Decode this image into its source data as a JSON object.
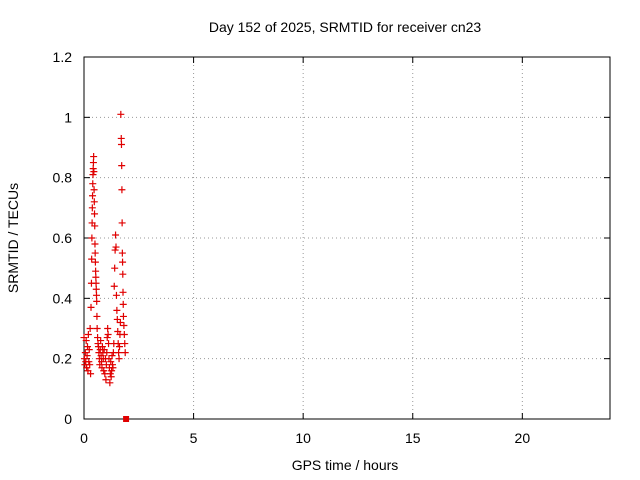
{
  "chart_data": {
    "type": "scatter",
    "title": "Day 152 of 2025, SRMTID for receiver cn23",
    "xlabel": "GPS time / hours",
    "ylabel": "SRMTID / TECUs",
    "xlim": [
      0,
      24
    ],
    "ylim": [
      0,
      1.2
    ],
    "xticks": [
      0,
      5,
      10,
      15,
      20
    ],
    "yticks": [
      0,
      0.2,
      0.4,
      0.6,
      0.8,
      1.0,
      1.2
    ],
    "xtick_labels": [
      "0",
      "5",
      "10",
      "15",
      "20"
    ],
    "ytick_labels": [
      "0",
      "0.2",
      "0.4",
      "0.6",
      "0.8",
      "1",
      "1.2"
    ],
    "grid": true,
    "marker_color": "#e00000",
    "series": [
      {
        "marker": "plus",
        "points": [
          [
            0.0,
            0.27
          ],
          [
            0.02,
            0.2
          ],
          [
            0.04,
            0.18
          ],
          [
            0.06,
            0.22
          ],
          [
            0.08,
            0.19
          ],
          [
            0.1,
            0.26
          ],
          [
            0.12,
            0.17
          ],
          [
            0.14,
            0.21
          ],
          [
            0.16,
            0.24
          ],
          [
            0.18,
            0.16
          ],
          [
            0.2,
            0.28
          ],
          [
            0.22,
            0.19
          ],
          [
            0.24,
            0.23
          ],
          [
            0.26,
            0.18
          ],
          [
            0.28,
            0.3
          ],
          [
            0.3,
            0.15
          ],
          [
            0.32,
            0.37
          ],
          [
            0.34,
            0.45
          ],
          [
            0.35,
            0.53
          ],
          [
            0.36,
            0.6
          ],
          [
            0.37,
            0.65
          ],
          [
            0.38,
            0.7
          ],
          [
            0.39,
            0.74
          ],
          [
            0.4,
            0.78
          ],
          [
            0.41,
            0.81
          ],
          [
            0.42,
            0.83
          ],
          [
            0.43,
            0.85
          ],
          [
            0.44,
            0.87
          ],
          [
            0.45,
            0.82
          ],
          [
            0.46,
            0.76
          ],
          [
            0.47,
            0.72
          ],
          [
            0.48,
            0.68
          ],
          [
            0.49,
            0.64
          ],
          [
            0.5,
            0.58
          ],
          [
            0.51,
            0.55
          ],
          [
            0.52,
            0.52
          ],
          [
            0.53,
            0.49
          ],
          [
            0.54,
            0.47
          ],
          [
            0.55,
            0.45
          ],
          [
            0.56,
            0.43
          ],
          [
            0.57,
            0.41
          ],
          [
            0.58,
            0.39
          ],
          [
            0.59,
            0.34
          ],
          [
            0.6,
            0.3
          ],
          [
            0.62,
            0.27
          ],
          [
            0.64,
            0.25
          ],
          [
            0.66,
            0.24
          ],
          [
            0.68,
            0.22
          ],
          [
            0.7,
            0.2
          ],
          [
            0.72,
            0.18
          ],
          [
            0.74,
            0.23
          ],
          [
            0.76,
            0.26
          ],
          [
            0.78,
            0.21
          ],
          [
            0.8,
            0.19
          ],
          [
            0.82,
            0.17
          ],
          [
            0.84,
            0.24
          ],
          [
            0.86,
            0.22
          ],
          [
            0.88,
            0.2
          ],
          [
            0.9,
            0.16
          ],
          [
            0.92,
            0.23
          ],
          [
            0.95,
            0.15
          ],
          [
            0.98,
            0.2
          ],
          [
            1.0,
            0.13
          ],
          [
            1.02,
            0.18
          ],
          [
            1.04,
            0.22
          ],
          [
            1.06,
            0.27
          ],
          [
            1.08,
            0.3
          ],
          [
            1.1,
            0.28
          ],
          [
            1.12,
            0.25
          ],
          [
            1.14,
            0.2
          ],
          [
            1.16,
            0.17
          ],
          [
            1.18,
            0.12
          ],
          [
            1.2,
            0.15
          ],
          [
            1.22,
            0.19
          ],
          [
            1.24,
            0.14
          ],
          [
            1.26,
            0.16
          ],
          [
            1.28,
            0.21
          ],
          [
            1.3,
            0.18
          ],
          [
            1.32,
            0.17
          ],
          [
            1.34,
            0.22
          ],
          [
            1.36,
            0.25
          ],
          [
            1.38,
            0.44
          ],
          [
            1.4,
            0.5
          ],
          [
            1.42,
            0.56
          ],
          [
            1.44,
            0.61
          ],
          [
            1.46,
            0.57
          ],
          [
            1.48,
            0.41
          ],
          [
            1.5,
            0.36
          ],
          [
            1.52,
            0.33
          ],
          [
            1.54,
            0.29
          ],
          [
            1.56,
            0.25
          ],
          [
            1.58,
            0.22
          ],
          [
            1.6,
            0.2
          ],
          [
            1.62,
            0.24
          ],
          [
            1.64,
            0.28
          ],
          [
            1.66,
            0.32
          ],
          [
            1.68,
            1.01
          ],
          [
            1.7,
            0.93
          ],
          [
            1.71,
            0.91
          ],
          [
            1.72,
            0.84
          ],
          [
            1.73,
            0.76
          ],
          [
            1.74,
            0.65
          ],
          [
            1.75,
            0.55
          ],
          [
            1.76,
            0.52
          ],
          [
            1.77,
            0.48
          ],
          [
            1.78,
            0.42
          ],
          [
            1.79,
            0.38
          ],
          [
            1.8,
            0.34
          ],
          [
            1.82,
            0.31
          ],
          [
            1.84,
            0.28
          ],
          [
            1.86,
            0.25
          ],
          [
            1.88,
            0.22
          ]
        ]
      },
      {
        "marker": "square",
        "points": [
          [
            1.92,
            0.0
          ]
        ]
      }
    ]
  }
}
